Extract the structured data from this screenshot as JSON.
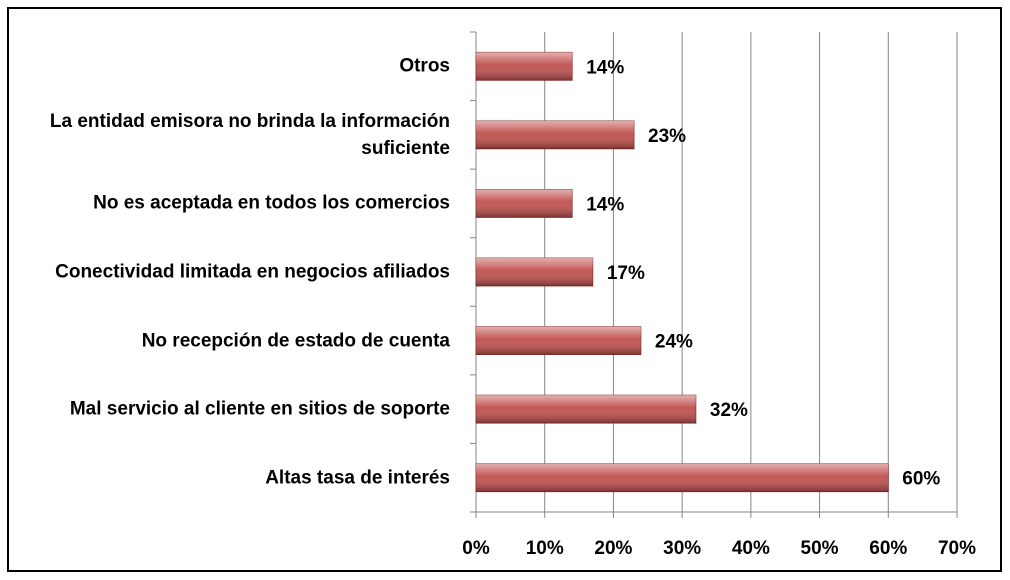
{
  "chart_data": {
    "type": "bar",
    "orientation": "horizontal",
    "categories": [
      "Otros",
      "La entidad emisora no brinda la información suficiente",
      "No es aceptada en todos los comercios",
      "Conectividad limitada en negocios afiliados",
      "No recepción de estado de cuenta",
      "Mal servicio al cliente en sitios de soporte",
      "Altas tasa de interés"
    ],
    "values": [
      14,
      23,
      14,
      17,
      24,
      32,
      60
    ],
    "value_labels": [
      "14%",
      "23%",
      "14%",
      "17%",
      "24%",
      "32%",
      "60%"
    ],
    "color": "#c0504d",
    "xlim": [
      0,
      70
    ],
    "xticks": [
      {
        "value": 0,
        "label": "0%"
      },
      {
        "value": 10,
        "label": "10%"
      },
      {
        "value": 20,
        "label": "20%"
      },
      {
        "value": 30,
        "label": "30%"
      },
      {
        "value": 40,
        "label": "40%"
      },
      {
        "value": 50,
        "label": "50%"
      },
      {
        "value": 60,
        "label": "60%"
      },
      {
        "value": 70,
        "label": "70%"
      }
    ],
    "grid": true
  }
}
